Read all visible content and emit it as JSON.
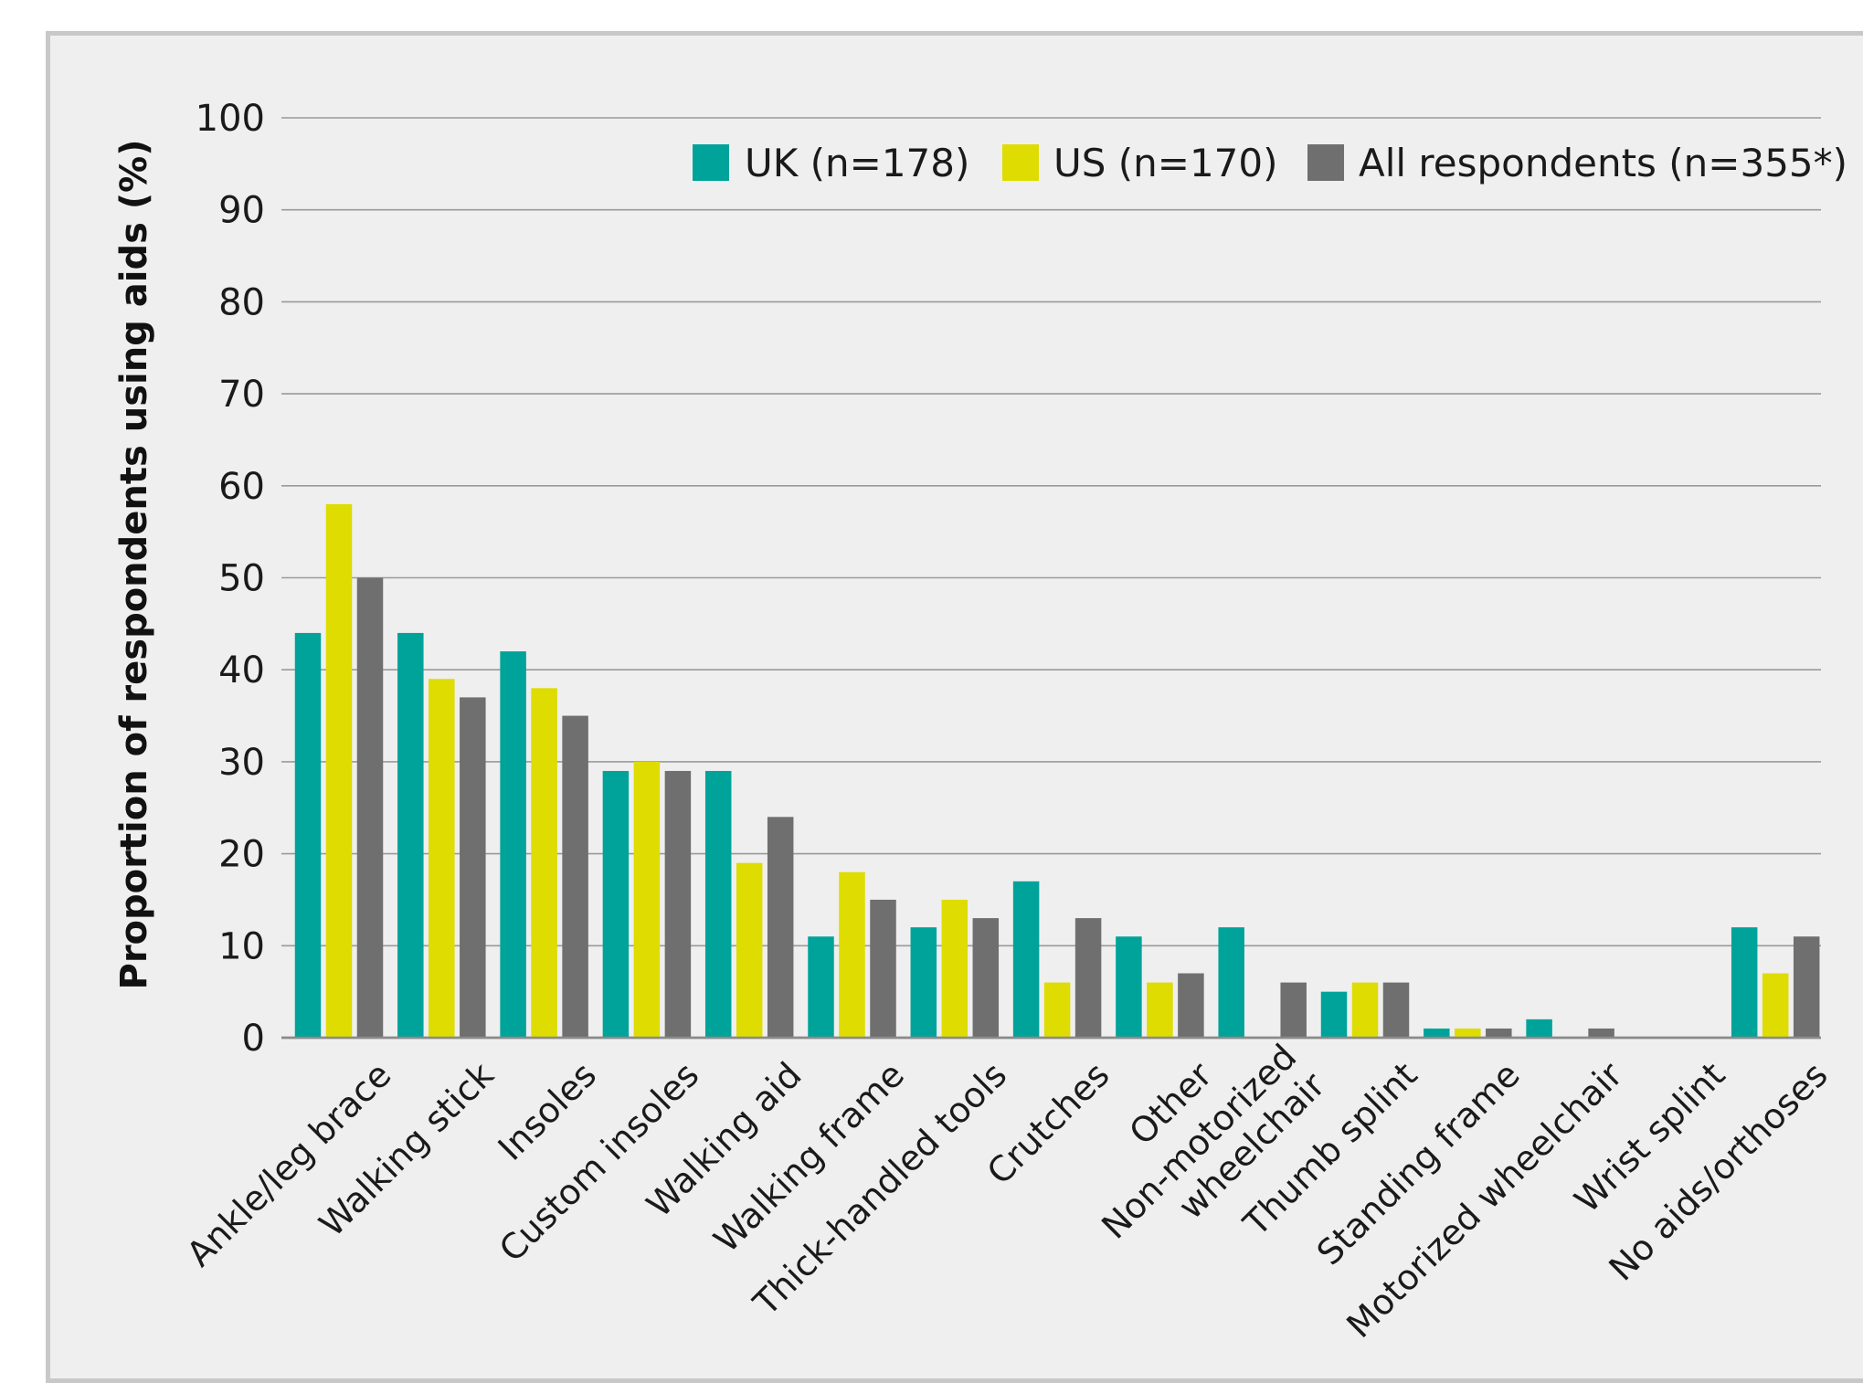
{
  "chart_data": {
    "type": "bar",
    "title": "",
    "xlabel": "",
    "ylabel": "Proportion of respondents using aids (%)",
    "ylim": [
      0,
      100
    ],
    "yticks": [
      0,
      10,
      20,
      30,
      40,
      50,
      60,
      70,
      80,
      90,
      100
    ],
    "grid": true,
    "legend_position": "top-right",
    "categories": [
      [
        "Ankle/leg brace"
      ],
      [
        "Walking stick"
      ],
      [
        "Insoles"
      ],
      [
        "Custom insoles"
      ],
      [
        "Walking aid"
      ],
      [
        "Walking frame"
      ],
      [
        "Thick-handled tools"
      ],
      [
        "Crutches"
      ],
      [
        "Other"
      ],
      [
        "Non-motorized",
        "wheelchair"
      ],
      [
        "Thumb splint"
      ],
      [
        "Standing frame"
      ],
      [
        "Motorized wheelchair"
      ],
      [
        "Wrist splint"
      ],
      [
        "No aids/orthoses"
      ]
    ],
    "series": [
      {
        "name": "UK (n=178)",
        "color": "#00a39a",
        "values": [
          44,
          44,
          42,
          29,
          29,
          11,
          12,
          17,
          11,
          12,
          5,
          1,
          2,
          0,
          12
        ]
      },
      {
        "name": "US (n=170)",
        "color": "#dedc00",
        "values": [
          58,
          39,
          38,
          30,
          19,
          18,
          15,
          6,
          6,
          0,
          6,
          1,
          0,
          0,
          7
        ]
      },
      {
        "name": "All respondents (n=355*)",
        "color": "#6f6f6f",
        "values": [
          50,
          37,
          35,
          29,
          24,
          15,
          13,
          13,
          7,
          6,
          6,
          1,
          1,
          0,
          11
        ]
      }
    ]
  }
}
